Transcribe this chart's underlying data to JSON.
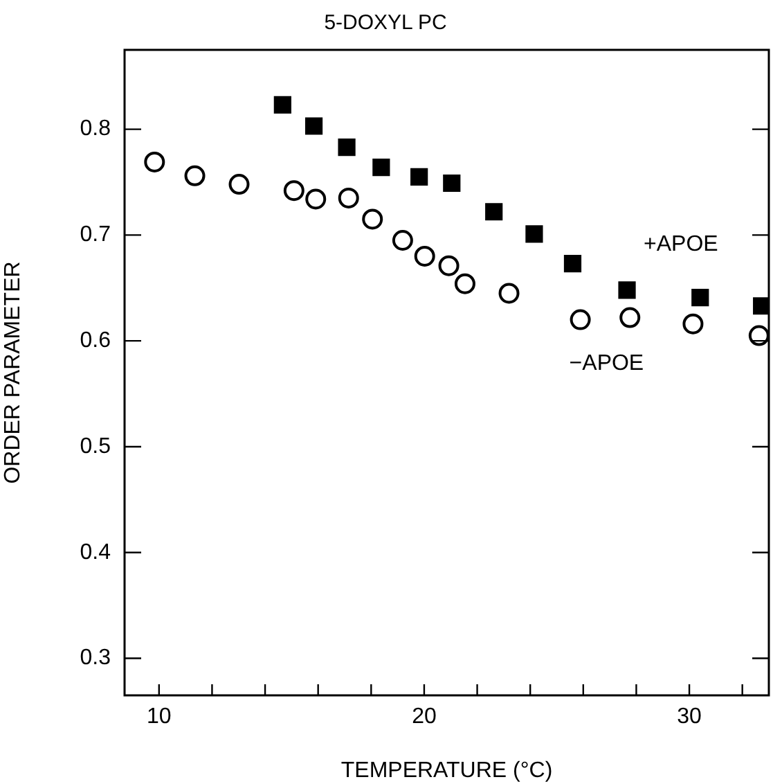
{
  "chart_data": {
    "type": "scatter",
    "title": "5-DOXYL PC",
    "xlabel": "TEMPERATURE (°C)",
    "ylabel": "ORDER PARAMETER",
    "xlim": [
      8.7,
      33
    ],
    "ylim": [
      0.265,
      0.875
    ],
    "xticks": [
      10,
      {
        "value": 12,
        "label": null
      },
      {
        "value": 14,
        "label": null
      },
      {
        "value": 16,
        "label": null
      },
      {
        "value": 18,
        "label": null
      },
      20,
      {
        "value": 22,
        "label": null
      },
      {
        "value": 24,
        "label": null
      },
      {
        "value": 26,
        "label": null
      },
      {
        "value": 28,
        "label": null
      },
      30,
      {
        "value": 32,
        "label": null
      }
    ],
    "yticks": [
      0.3,
      0.4,
      0.5,
      0.6,
      0.7,
      0.8
    ],
    "grid": false,
    "legend": "right",
    "series": [
      {
        "name": "+APOE",
        "color": "#000000",
        "marker": "square",
        "x": [
          14.66,
          15.84,
          17.08,
          18.38,
          19.81,
          21.04,
          22.63,
          24.15,
          25.6,
          27.65,
          30.41,
          32.73
        ],
        "values": [
          0.823,
          0.803,
          0.783,
          0.764,
          0.755,
          0.749,
          0.722,
          0.701,
          0.673,
          0.648,
          0.641,
          0.633
        ]
      },
      {
        "name": "−APOE",
        "color": "#000000",
        "marker": "circle",
        "x": [
          9.83,
          11.35,
          13.02,
          15.09,
          15.91,
          17.15,
          18.05,
          19.19,
          20.02,
          20.93,
          21.54,
          23.2,
          25.89,
          27.76,
          30.14,
          32.63
        ],
        "values": [
          0.769,
          0.756,
          0.748,
          0.742,
          0.734,
          0.735,
          0.715,
          0.695,
          0.68,
          0.671,
          0.654,
          0.645,
          0.62,
          0.622,
          0.616,
          0.605
        ]
      }
    ]
  }
}
